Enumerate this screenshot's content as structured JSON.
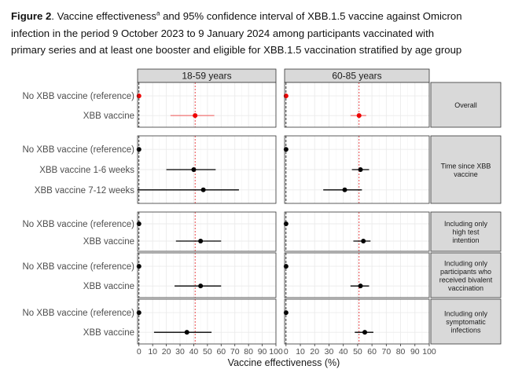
{
  "caption": {
    "figure_label": "Figure 2",
    "text_before_sup": ". Vaccine effectiveness",
    "superscript": "a",
    "line1_rest": " and 95% confidence interval  of XBB.1.5 vaccine against Omicron",
    "line2": "infection in the period 9 October 2023 to 9 January 2024 among participants vaccinated with",
    "line3": "primary series and at least one booster and eligible for XBB.1.5 vaccination stratified by age group"
  },
  "chart_data": {
    "type": "scatter",
    "subtype": "forest-plot",
    "xlabel": "Vaccine effectiveness (%)",
    "xlim": [
      -1,
      100
    ],
    "xticks": [
      0,
      10,
      20,
      30,
      40,
      50,
      60,
      70,
      80,
      90,
      100
    ],
    "reference_line": 0,
    "grid": true,
    "columns": [
      {
        "label": "18-59 years",
        "overall_ve_line": 41
      },
      {
        "label": "60-85 years",
        "overall_ve_line": 51
      }
    ],
    "panels": [
      {
        "label": "Overall",
        "rows": [
          {
            "label": "No XBB vaccine (reference)",
            "values": [
              {
                "est": 0,
                "lo": 0,
                "hi": 0
              },
              {
                "est": 0,
                "lo": 0,
                "hi": 0
              }
            ],
            "color": "#ee0000"
          },
          {
            "label": "XBB vaccine",
            "values": [
              {
                "est": 41,
                "lo": 23,
                "hi": 55
              },
              {
                "est": 51,
                "lo": 45,
                "hi": 56
              }
            ],
            "color": "#ee0000"
          }
        ]
      },
      {
        "label": "Time since XBB vaccine",
        "rows": [
          {
            "label": "No XBB vaccine (reference)",
            "values": [
              {
                "est": 0,
                "lo": 0,
                "hi": 0
              },
              {
                "est": 0,
                "lo": 0,
                "hi": 0
              }
            ],
            "color": "#000000"
          },
          {
            "label": "XBB vaccine 1-6 weeks",
            "values": [
              {
                "est": 40,
                "lo": 20,
                "hi": 56
              },
              {
                "est": 52,
                "lo": 46,
                "hi": 58
              }
            ],
            "color": "#000000"
          },
          {
            "label": "XBB vaccine 7-12 weeks",
            "values": [
              {
                "est": 47,
                "lo": -1,
                "hi": 73
              },
              {
                "est": 41,
                "lo": 26,
                "hi": 53
              }
            ],
            "color": "#000000"
          }
        ]
      },
      {
        "label": "Including only high test intention",
        "rows": [
          {
            "label": "No XBB vaccine (reference)",
            "values": [
              {
                "est": 0,
                "lo": 0,
                "hi": 0
              },
              {
                "est": 0,
                "lo": 0,
                "hi": 0
              }
            ],
            "color": "#000000"
          },
          {
            "label": "XBB vaccine",
            "values": [
              {
                "est": 45,
                "lo": 27,
                "hi": 60
              },
              {
                "est": 54,
                "lo": 47,
                "hi": 59
              }
            ],
            "color": "#000000"
          }
        ]
      },
      {
        "label": "Including only participants who received bivalent vaccination",
        "rows": [
          {
            "label": "No XBB vaccine (reference)",
            "values": [
              {
                "est": 0,
                "lo": 0,
                "hi": 0
              },
              {
                "est": 0,
                "lo": 0,
                "hi": 0
              }
            ],
            "color": "#000000"
          },
          {
            "label": "XBB vaccine",
            "values": [
              {
                "est": 45,
                "lo": 26,
                "hi": 60
              },
              {
                "est": 52,
                "lo": 45,
                "hi": 58
              }
            ],
            "color": "#000000"
          }
        ]
      },
      {
        "label": "Including only symptomatic infections",
        "rows": [
          {
            "label": "No XBB vaccine (reference)",
            "values": [
              {
                "est": 0,
                "lo": 0,
                "hi": 0
              },
              {
                "est": 0,
                "lo": 0,
                "hi": 0
              }
            ],
            "color": "#000000"
          },
          {
            "label": "XBB vaccine",
            "values": [
              {
                "est": 35,
                "lo": 11,
                "hi": 53
              },
              {
                "est": 55,
                "lo": 48,
                "hi": 61
              }
            ],
            "color": "#000000"
          }
        ]
      }
    ],
    "colors": {
      "strip_fill": "#d9d9d9",
      "strip_border": "#333333",
      "grid_major": "#ebebeb",
      "grid_minor": "#f5f5f5",
      "reference_line": "#000000",
      "ve_line": "#e41a1c",
      "overall_ci": "#f08080"
    }
  }
}
